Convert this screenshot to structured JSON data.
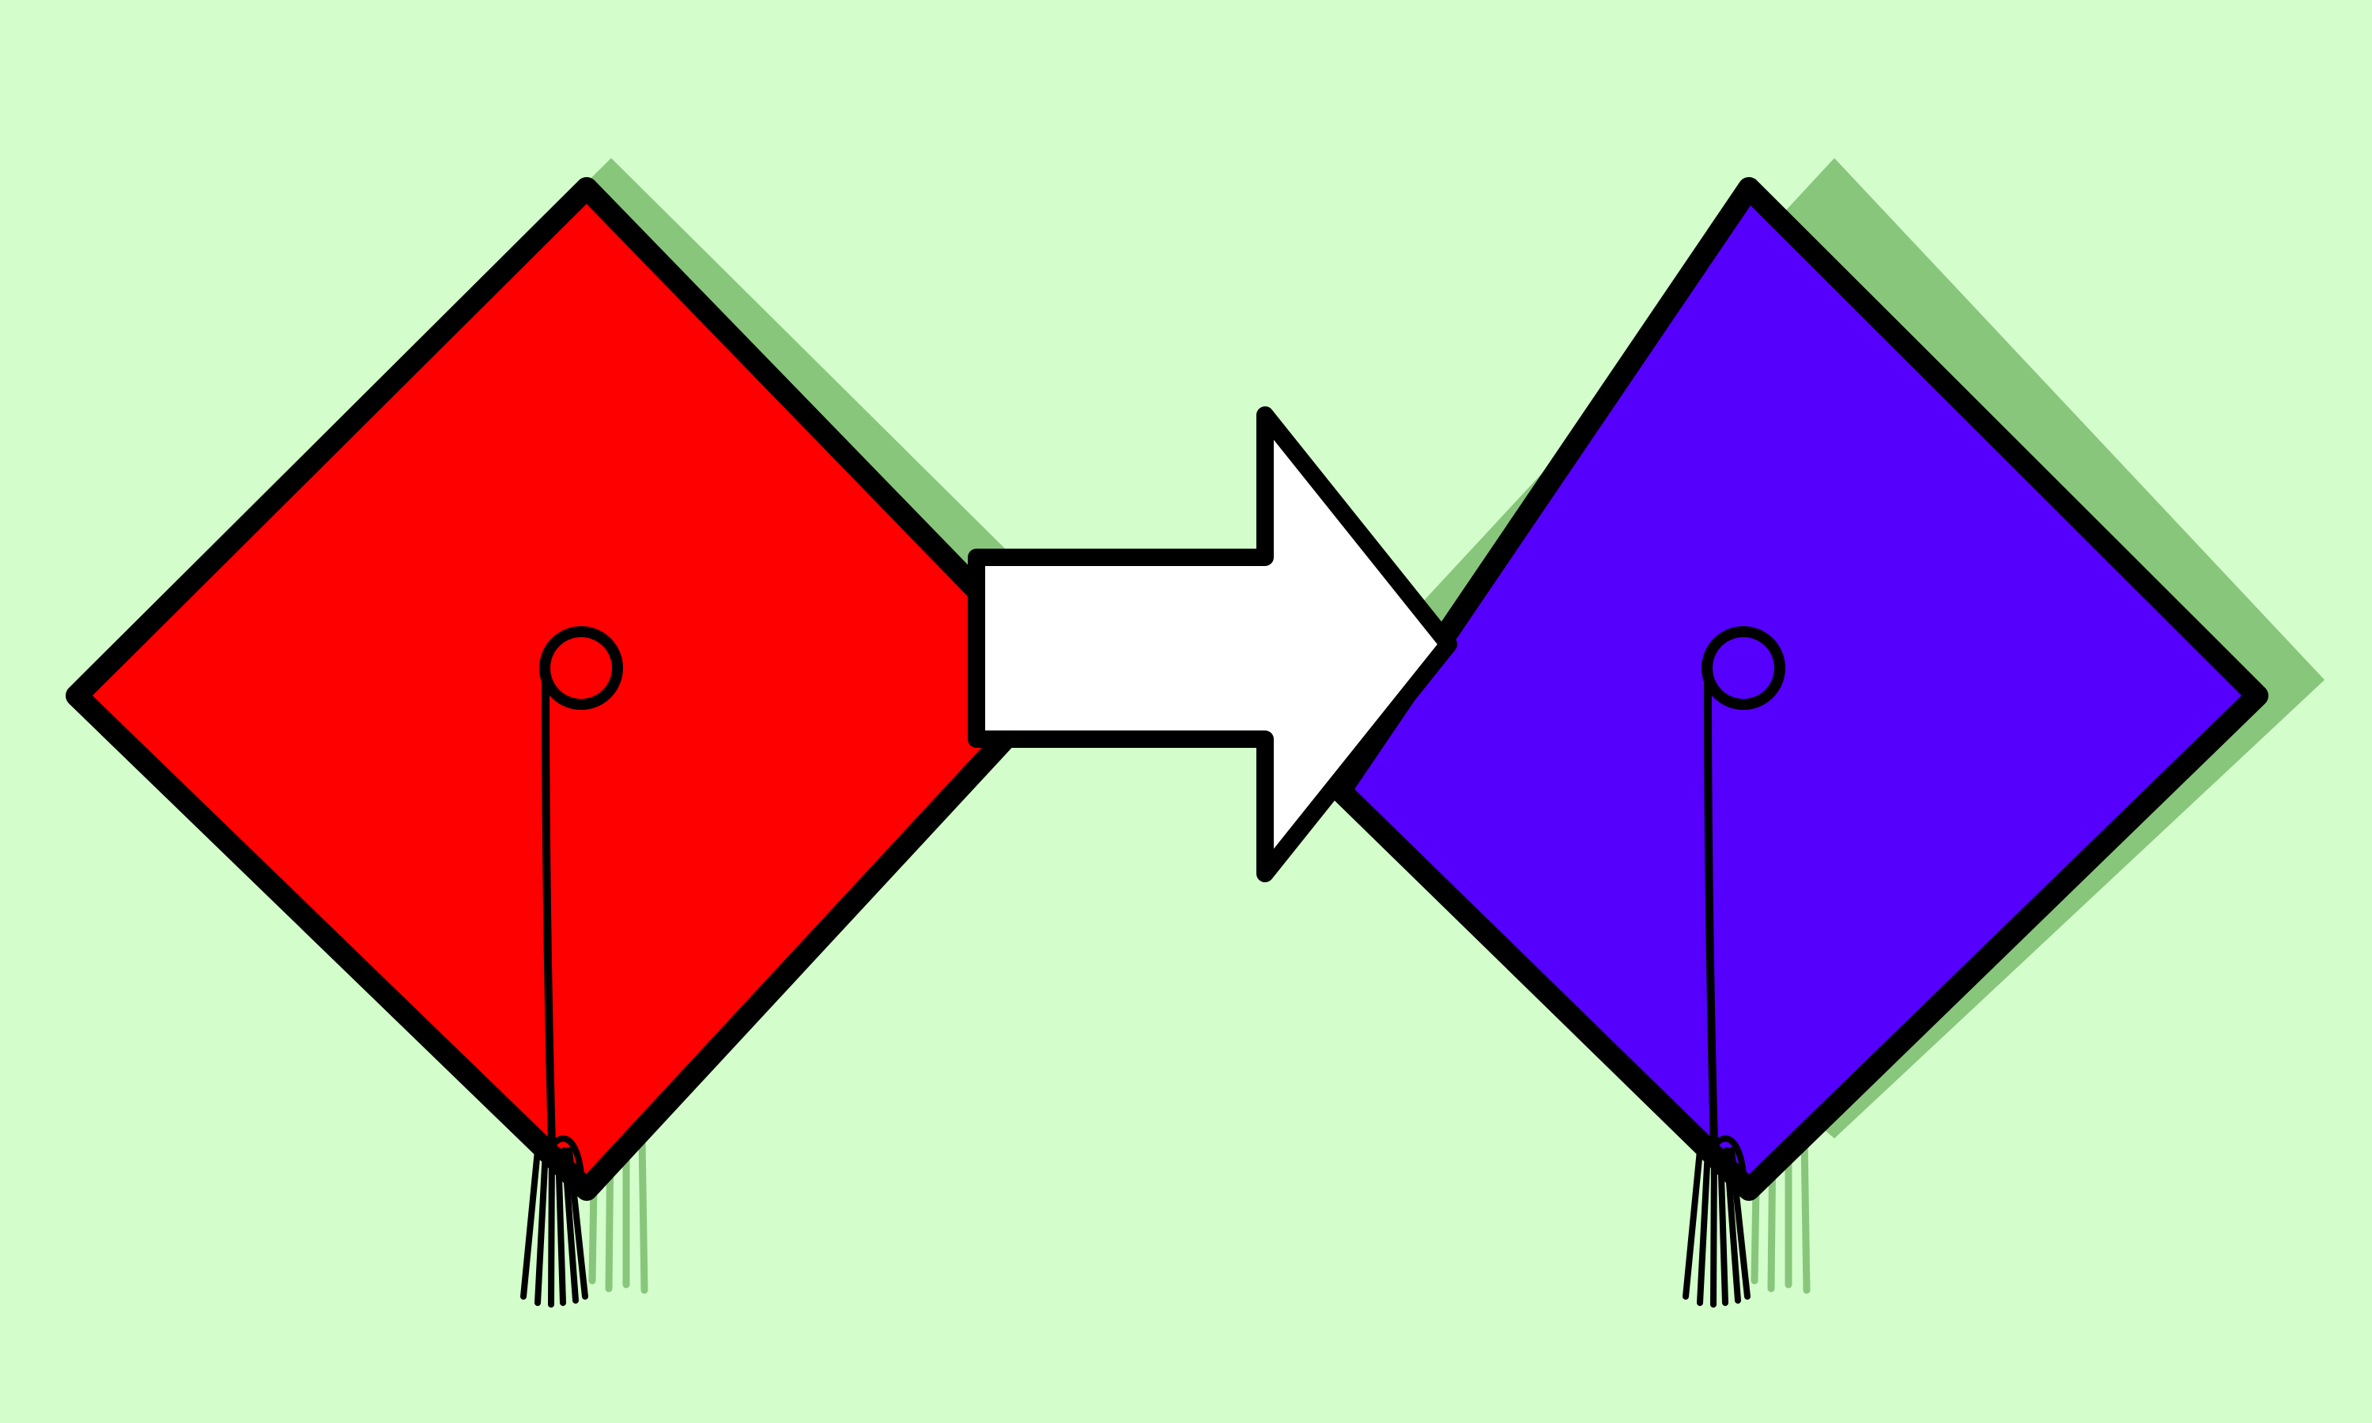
{
  "colors": {
    "background": "#d3fdca",
    "shadow": "#88c67c",
    "outline": "#000000",
    "left_cap_fill": "#fe0000",
    "right_cap_fill": "#5500fc",
    "arrow_fill": "#ffffff"
  },
  "icons": {
    "left": "graduation-cap-icon",
    "arrow": "right-arrow-icon",
    "right": "graduation-cap-icon"
  }
}
